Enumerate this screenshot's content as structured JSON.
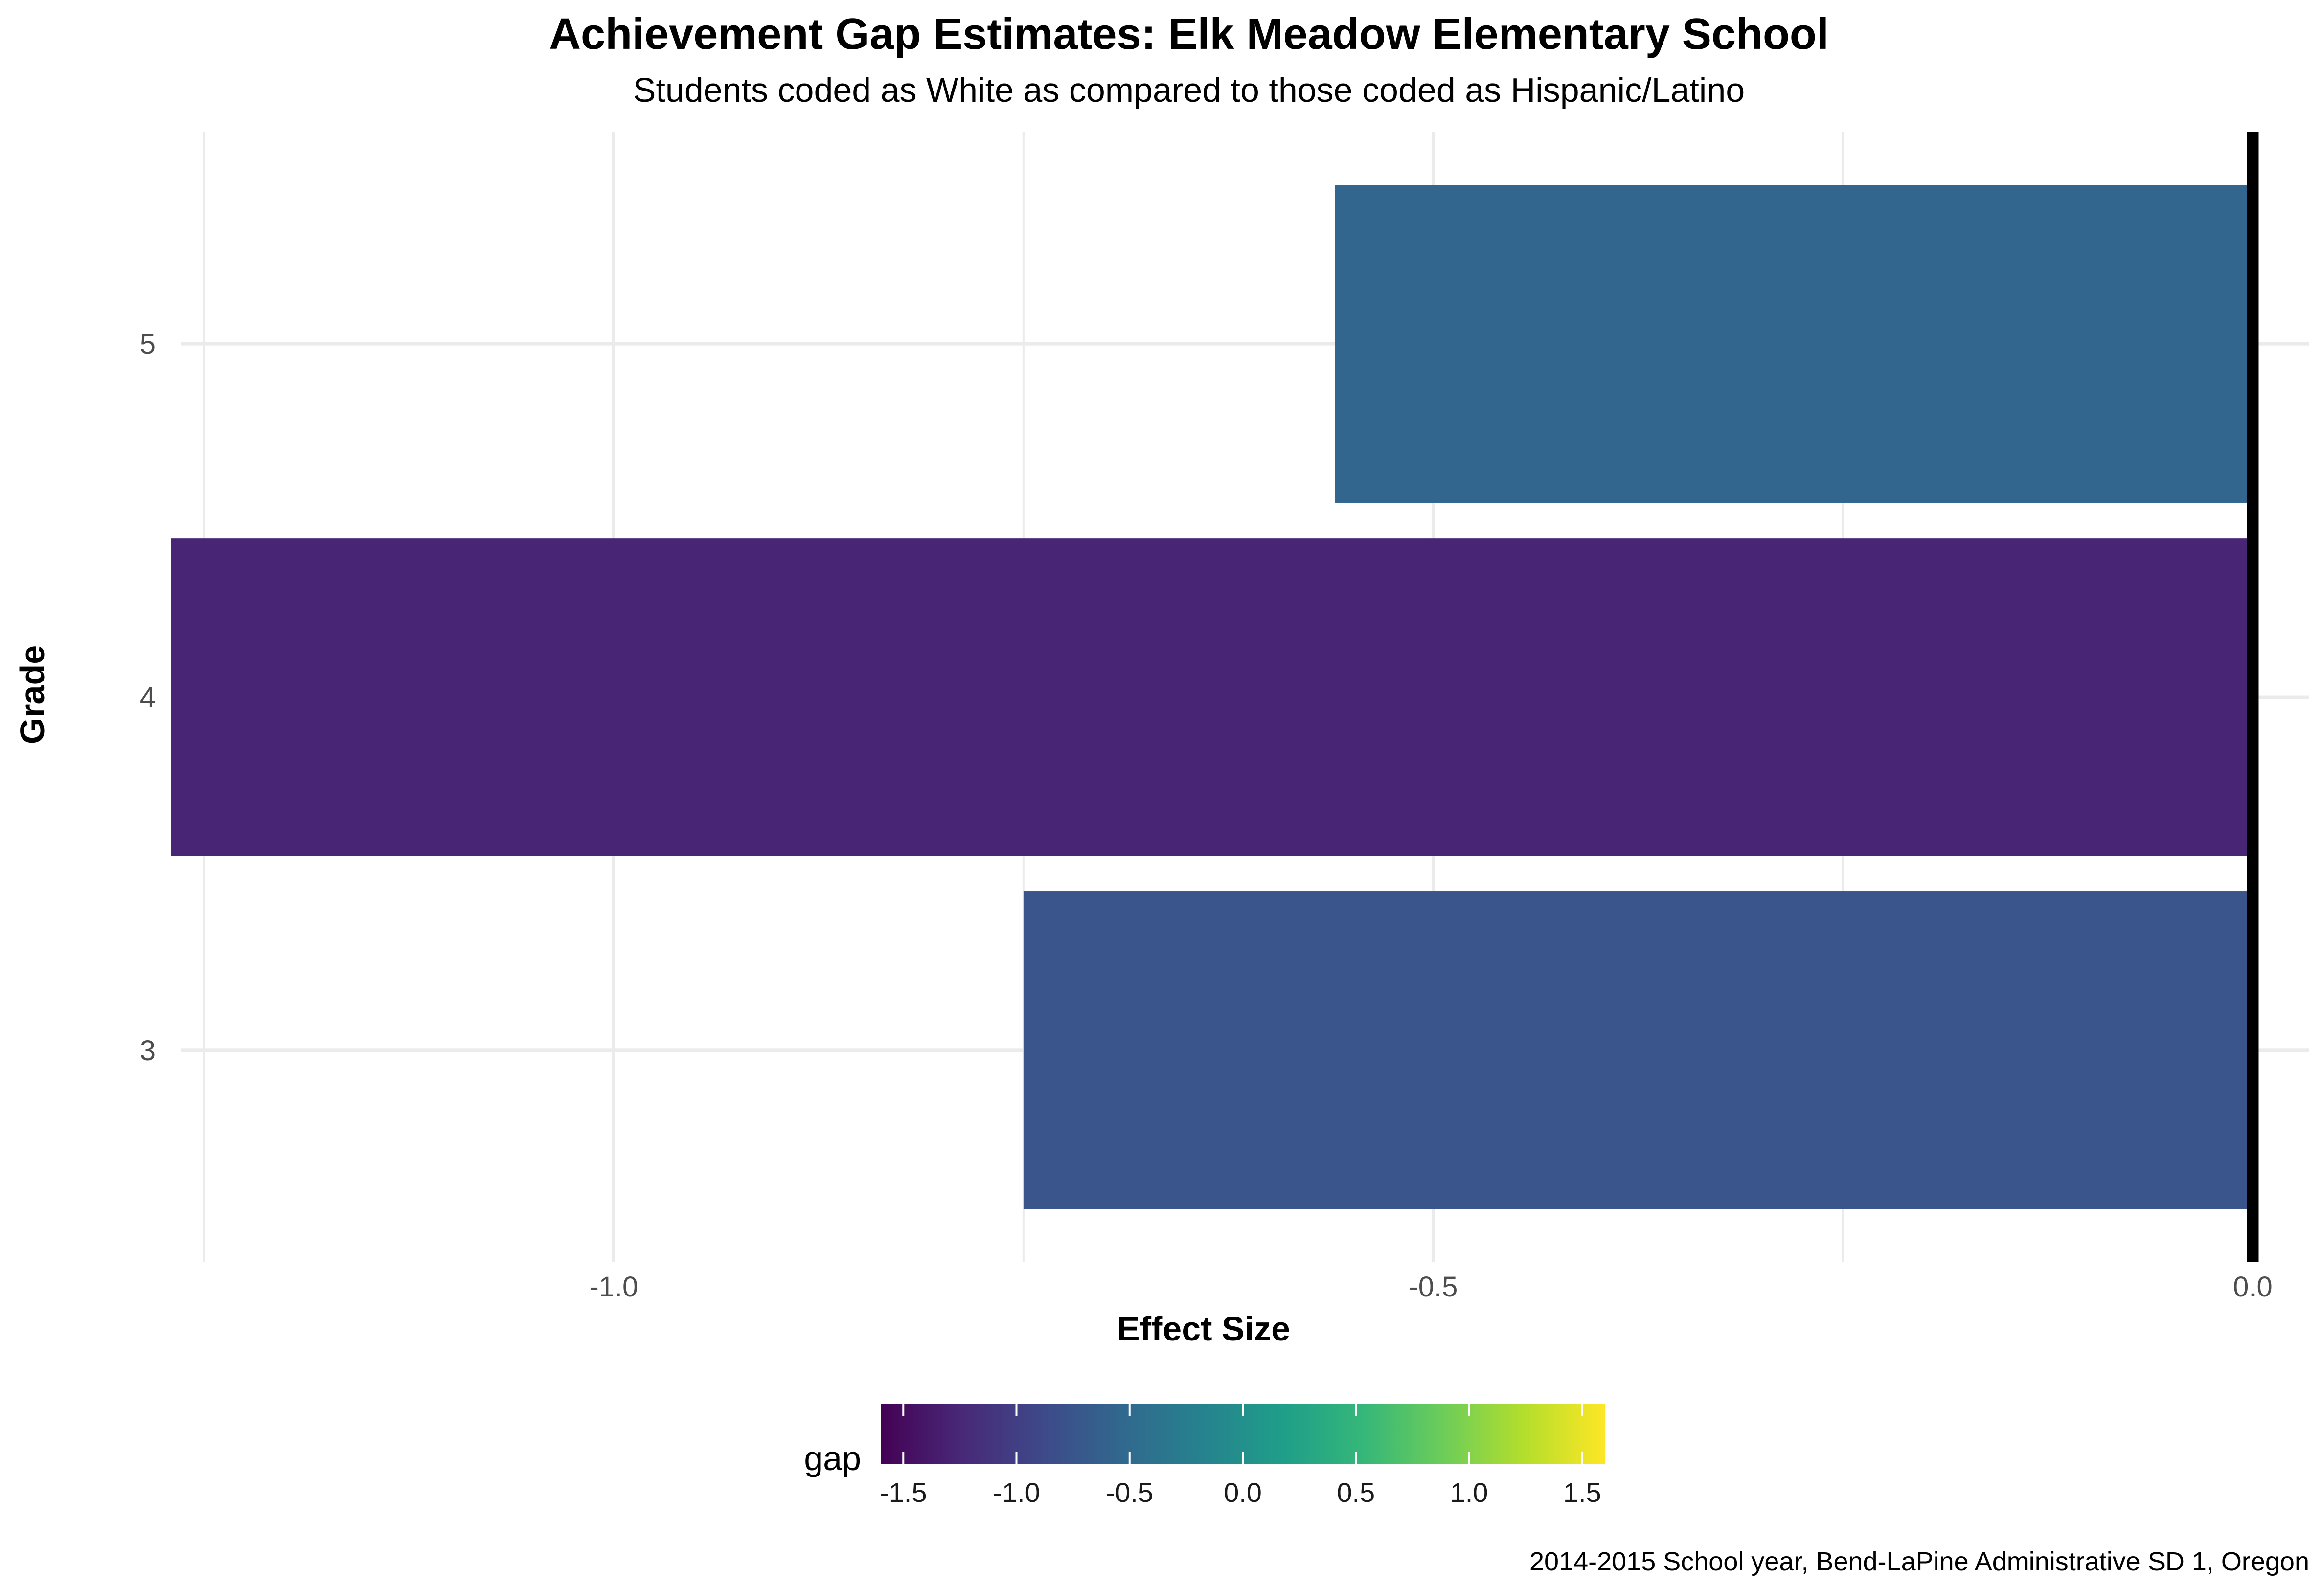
{
  "chart_data": {
    "type": "bar",
    "orientation": "horizontal",
    "title": "Achievement Gap Estimates: Elk Meadow Elementary School",
    "subtitle": "Students coded as White as compared to those coded as Hispanic/Latino",
    "xlabel": "Effect Size",
    "ylabel": "Grade",
    "categories": [
      "3",
      "4",
      "5"
    ],
    "values": [
      -0.75,
      -1.27,
      -0.56
    ],
    "xlim": [
      -1.255,
      0.03
    ],
    "x_ticks": [
      -1.0,
      -0.5,
      0.0
    ],
    "x_tick_labels": [
      "-1.0",
      "-0.5",
      "0.0"
    ],
    "reference_line": 0,
    "grid": true,
    "legend": {
      "title": "gap",
      "type": "colorbar",
      "palette": "viridis",
      "limits": [
        -1.6,
        1.6
      ],
      "ticks": [
        -1.5,
        -1.0,
        -0.5,
        0.0,
        0.5,
        1.0,
        1.5
      ],
      "tick_labels": [
        "-1.5",
        "-1.0",
        "-0.5",
        "0.0",
        "0.5",
        "1.0",
        "1.5"
      ],
      "placement": "bottom"
    },
    "caption": "2014-2015 School year, Bend-LaPine Administrative SD 1, Oregon",
    "colors": {
      "viridis": [
        "#440154",
        "#482878",
        "#3E4989",
        "#31688E",
        "#26828E",
        "#1F9E89",
        "#35B779",
        "#6DCD59",
        "#B4DE2C",
        "#FDE725"
      ],
      "grid": "#ebebeb",
      "zero_line": "#000000"
    }
  }
}
